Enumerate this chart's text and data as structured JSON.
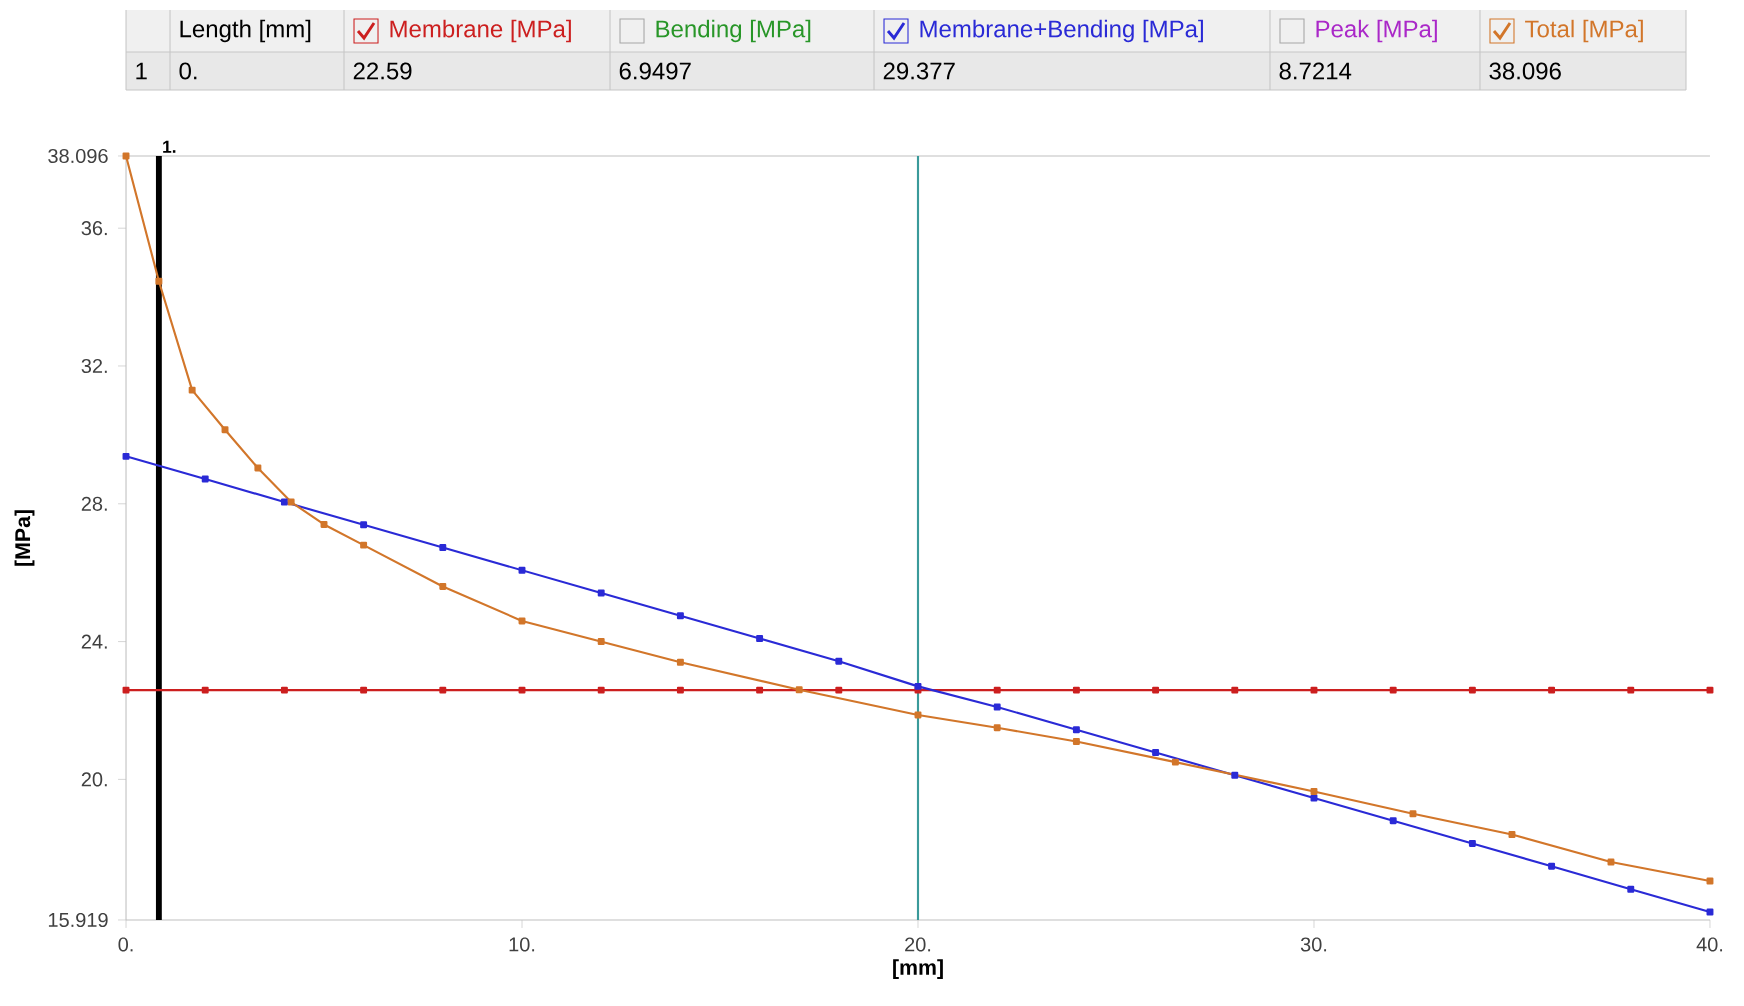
{
  "chart_data": {
    "type": "line",
    "xlabel": "[mm]",
    "ylabel": "[MPa]",
    "xlim": [
      0,
      40
    ],
    "ylim": [
      15.919,
      38.096
    ],
    "xticks": [
      {
        "value": 0,
        "label": "0."
      },
      {
        "value": 10,
        "label": "10."
      },
      {
        "value": 20,
        "label": "20."
      },
      {
        "value": 30,
        "label": "30."
      },
      {
        "value": 40,
        "label": "40."
      }
    ],
    "yticks": [
      15.919,
      {
        "value": 20,
        "label": "20."
      },
      {
        "value": 24,
        "label": "24."
      },
      {
        "value": 28,
        "label": "28."
      },
      {
        "value": 32,
        "label": "32."
      },
      {
        "value": 36,
        "label": "36."
      },
      38.096
    ],
    "series": [
      {
        "name": "Membrane [MPa]",
        "color": "#cc1f1f",
        "x": [
          0,
          2,
          4,
          6,
          8,
          10,
          12,
          14,
          16,
          18,
          20,
          22,
          24,
          26,
          28,
          30,
          32,
          34,
          36,
          38,
          40
        ],
        "values": [
          22.59,
          22.59,
          22.59,
          22.59,
          22.59,
          22.59,
          22.59,
          22.59,
          22.59,
          22.59,
          22.59,
          22.59,
          22.59,
          22.59,
          22.59,
          22.59,
          22.59,
          22.59,
          22.59,
          22.59,
          22.59
        ]
      },
      {
        "name": "Membrane+Bending [MPa]",
        "color": "#2a2ad6",
        "x": [
          0,
          2,
          4,
          6,
          8,
          10,
          12,
          14,
          16,
          18,
          20,
          22,
          24,
          26,
          28,
          30,
          32,
          34,
          36,
          38,
          40
        ],
        "values": [
          29.377,
          28.72,
          28.05,
          27.39,
          26.73,
          26.07,
          25.41,
          24.75,
          24.09,
          23.43,
          22.7,
          22.1,
          21.44,
          20.78,
          20.12,
          19.46,
          18.8,
          18.14,
          17.48,
          16.81,
          16.15
        ]
      },
      {
        "name": "Total [MPa]",
        "color": "#d2762a",
        "x": [
          0,
          0.83,
          1.67,
          2.5,
          3.33,
          4.17,
          5,
          6,
          8,
          10,
          12,
          14,
          17,
          20,
          22,
          24,
          26.5,
          30,
          32.5,
          35,
          37.5,
          40
        ],
        "values": [
          38.096,
          34.46,
          31.3,
          30.15,
          29.04,
          28.05,
          27.4,
          26.8,
          25.6,
          24.6,
          24.0,
          23.4,
          22.6,
          21.87,
          21.5,
          21.1,
          20.5,
          19.65,
          19.0,
          18.4,
          17.6,
          17.05
        ]
      }
    ],
    "ref_lines": [
      {
        "axis": "x",
        "value": 0.83,
        "label": "1.",
        "color": "#000000"
      },
      {
        "axis": "x",
        "value": 20,
        "color": "#3a9a9a"
      }
    ],
    "marker": "square",
    "line_style": "solid",
    "legend": "top",
    "annotations": [
      "1",
      "Length [mm]",
      "0.",
      "22.59",
      "Bending [MPa]",
      "6.9497",
      "29.377",
      "Peak [MPa]",
      "8.7214",
      "38.096"
    ]
  }
}
